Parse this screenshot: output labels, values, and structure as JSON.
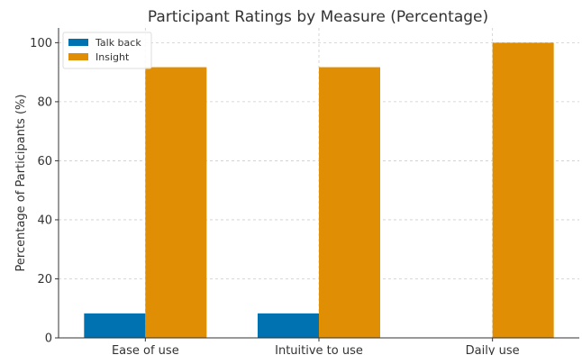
{
  "chart_data": {
    "type": "bar",
    "title": "Participant Ratings by Measure (Percentage)",
    "xlabel": "",
    "ylabel": "Percentage of Participants (%)",
    "categories": [
      "Ease of use",
      "Intuitive to use",
      "Daily use"
    ],
    "series": [
      {
        "name": "Talk back",
        "values": [
          8.3,
          8.3,
          0
        ],
        "color": "#0072B2"
      },
      {
        "name": "Insight",
        "values": [
          91.7,
          91.7,
          100
        ],
        "color": "#E08F05"
      }
    ],
    "ylim": [
      0,
      105
    ],
    "yticks": [
      0,
      20,
      40,
      60,
      80,
      100
    ],
    "grid": true,
    "legend_position": "top-left"
  }
}
